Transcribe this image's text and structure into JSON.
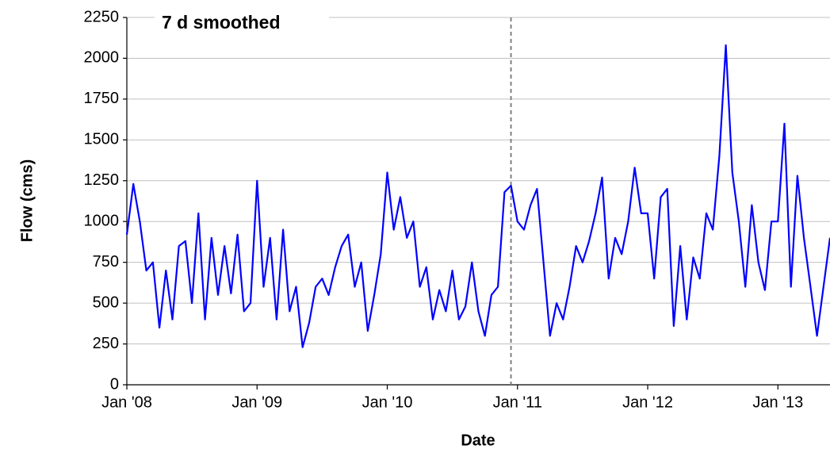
{
  "chart_data": {
    "type": "line",
    "annotation": "7 d smoothed",
    "x_label": "Date",
    "y_label": "Flow (cms)",
    "color": "#0000ff",
    "grid": true,
    "vline": 2010.95,
    "xlim": [
      2008,
      2013.4
    ],
    "ylim": [
      0,
      2250
    ],
    "xticks": [
      {
        "value": 2008,
        "label": "Jan '08"
      },
      {
        "value": 2009,
        "label": "Jan '09"
      },
      {
        "value": 2010,
        "label": "Jan '10"
      },
      {
        "value": 2011,
        "label": "Jan '11"
      },
      {
        "value": 2012,
        "label": "Jan '12"
      },
      {
        "value": 2013,
        "label": "Jan '13"
      }
    ],
    "yticks": [
      0,
      250,
      500,
      750,
      1000,
      1250,
      1500,
      1750,
      2000,
      2250
    ],
    "x": [
      2008,
      2008.05,
      2008.1,
      2008.15,
      2008.2,
      2008.25,
      2008.3,
      2008.35,
      2008.4,
      2008.45,
      2008.5,
      2008.55,
      2008.6,
      2008.65,
      2008.7,
      2008.75,
      2008.8,
      2008.85,
      2008.9,
      2008.95,
      2009,
      2009.05,
      2009.1,
      2009.15,
      2009.2,
      2009.25,
      2009.3,
      2009.35,
      2009.4,
      2009.45,
      2009.5,
      2009.55,
      2009.6,
      2009.65,
      2009.7,
      2009.75,
      2009.8,
      2009.85,
      2009.9,
      2009.95,
      2010,
      2010.05,
      2010.1,
      2010.15,
      2010.2,
      2010.25,
      2010.3,
      2010.35,
      2010.4,
      2010.45,
      2010.5,
      2010.55,
      2010.6,
      2010.65,
      2010.7,
      2010.75,
      2010.8,
      2010.85,
      2010.9,
      2010.95,
      2011,
      2011.05,
      2011.1,
      2011.15,
      2011.2,
      2011.25,
      2011.3,
      2011.35,
      2011.4,
      2011.45,
      2011.5,
      2011.55,
      2011.6,
      2011.65,
      2011.7,
      2011.75,
      2011.8,
      2011.85,
      2011.9,
      2011.95,
      2012,
      2012.05,
      2012.1,
      2012.15,
      2012.2,
      2012.25,
      2012.3,
      2012.35,
      2012.4,
      2012.45,
      2012.5,
      2012.55,
      2012.6,
      2012.65,
      2012.7,
      2012.75,
      2012.8,
      2012.85,
      2012.9,
      2012.95,
      2013,
      2013.05,
      2013.1,
      2013.15,
      2013.2,
      2013.25,
      2013.3,
      2013.35,
      2013.4
    ],
    "values": [
      920,
      1230,
      1000,
      700,
      750,
      350,
      700,
      400,
      850,
      880,
      500,
      1050,
      400,
      900,
      550,
      850,
      560,
      920,
      450,
      500,
      1250,
      600,
      900,
      400,
      950,
      450,
      600,
      230,
      380,
      600,
      650,
      550,
      720,
      850,
      920,
      600,
      750,
      330,
      550,
      800,
      1300,
      950,
      1150,
      900,
      1000,
      600,
      720,
      400,
      580,
      450,
      700,
      400,
      480,
      750,
      450,
      300,
      550,
      600,
      1180,
      1220,
      1000,
      950,
      1100,
      1200,
      750,
      300,
      500,
      400,
      600,
      850,
      750,
      880,
      1050,
      1270,
      650,
      900,
      800,
      1000,
      1330,
      1050,
      1050,
      650,
      1150,
      1200,
      360,
      850,
      400,
      780,
      650,
      1050,
      950,
      1400,
      2080,
      1300,
      1000,
      600,
      1100,
      750,
      580,
      1000,
      1000,
      1600,
      600,
      1280,
      900,
      600,
      300,
      600,
      900
    ]
  }
}
